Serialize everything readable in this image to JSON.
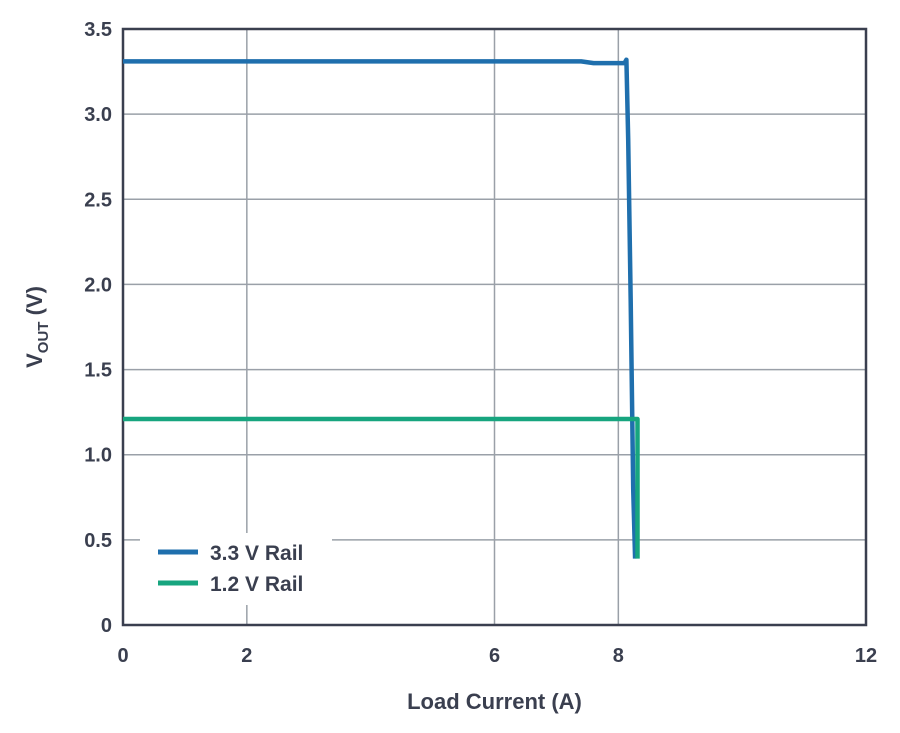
{
  "chart_data": {
    "type": "line",
    "title": "",
    "xlabel": "Load Current (A)",
    "ylabel": {
      "main": "V",
      "subscript": "OUT",
      "unit": " (V)"
    },
    "xlim": [
      0,
      12
    ],
    "ylim": [
      0,
      3.5
    ],
    "x_ticks": [
      0,
      2,
      6,
      8,
      12
    ],
    "x_tick_labels": [
      "0",
      "2",
      "6",
      "8",
      "12"
    ],
    "x_gridlines": [
      0,
      2,
      6,
      8,
      12
    ],
    "y_ticks": [
      0,
      0.5,
      1.0,
      1.5,
      2.0,
      2.5,
      3.0,
      3.5
    ],
    "y_tick_labels": [
      "0",
      "0.5",
      "1.0",
      "1.5",
      "2.0",
      "2.5",
      "3.0",
      "3.5"
    ],
    "grid": true,
    "legend_position": "bottom-left",
    "series": [
      {
        "name": "3.3 V Rail",
        "color": "#1f6fad",
        "points": [
          [
            0,
            3.31
          ],
          [
            7.4,
            3.31
          ],
          [
            7.6,
            3.3
          ],
          [
            8.0,
            3.3
          ],
          [
            8.1,
            3.3
          ],
          [
            8.13,
            3.32
          ],
          [
            8.16,
            2.85
          ],
          [
            8.2,
            1.9
          ],
          [
            8.24,
            0.8
          ],
          [
            8.27,
            0.39
          ]
        ]
      },
      {
        "name": "1.2 V Rail",
        "color": "#17a57f",
        "points": [
          [
            0,
            1.21
          ],
          [
            8.2,
            1.21
          ],
          [
            8.31,
            1.21
          ],
          [
            8.31,
            0.39
          ]
        ]
      }
    ]
  }
}
